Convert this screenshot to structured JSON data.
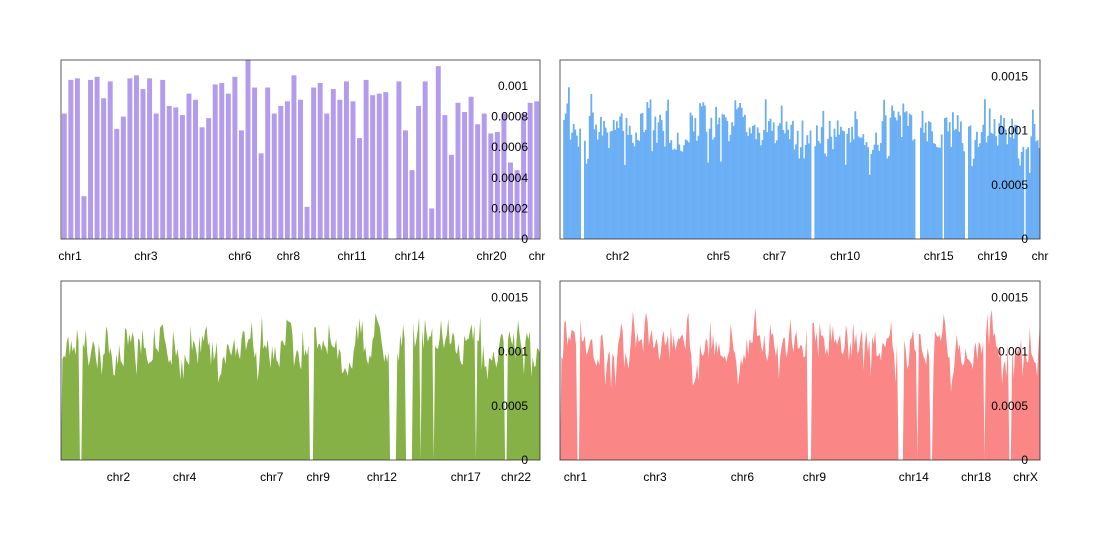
{
  "chart_data": [
    {
      "type": "bar",
      "color": "#b39ced",
      "ylim": [
        0,
        0.00117
      ],
      "yticks": [
        {
          "value": 0,
          "label": "0"
        },
        {
          "value": 0.0002,
          "label": "0.0002"
        },
        {
          "value": 0.0004,
          "label": "0.0004"
        },
        {
          "value": 0.0006,
          "label": "0.0006"
        },
        {
          "value": 0.0008,
          "label": "0.0008"
        },
        {
          "value": 0.001,
          "label": "0.001"
        }
      ],
      "xlim": [
        0,
        79
      ],
      "xticks": [
        {
          "value": 1.5,
          "label": "chr1"
        },
        {
          "value": 14,
          "label": "chr3"
        },
        {
          "value": 29.5,
          "label": "chr6"
        },
        {
          "value": 37.5,
          "label": "chr8"
        },
        {
          "value": 48,
          "label": "chr11"
        },
        {
          "value": 57.5,
          "label": "chr14"
        },
        {
          "value": 71,
          "label": "chr20"
        },
        {
          "value": 78.5,
          "label": "chr"
        }
      ],
      "values": [
        0.00082,
        0.00104,
        0.00105,
        0.00028,
        0.00104,
        0.00106,
        0.00092,
        0.00103,
        0.00072,
        0.0008,
        0.00105,
        0.00107,
        0.00098,
        0.00105,
        0.00082,
        0.00104,
        0.00087,
        0.00086,
        0.00081,
        0.00095,
        0.00091,
        0.00073,
        0.00079,
        0.00101,
        0.00102,
        0.00095,
        0.00106,
        0.00071,
        0.00117,
        0.00099,
        0.00056,
        0.00099,
        0.00082,
        0.00087,
        0.0009,
        0.00107,
        0.00091,
        0.00021,
        0.00099,
        0.00102,
        0.00082,
        0.00098,
        0.00091,
        0.00103,
        0.0009,
        0.00066,
        0.00104,
        0.00094,
        0.00095,
        0.00096,
        0,
        0.00103,
        0.00071,
        0.00045,
        0.00087,
        0.00103,
        0.0002,
        0.00113,
        0.00081,
        0.00055,
        0.00089,
        0.00083,
        0.00093,
        0.00075,
        0.00082,
        0.00069,
        0.0007,
        0.00082,
        0.0005,
        0.00045,
        0.00082,
        0.00089,
        0.0009
      ]
    },
    {
      "type": "bar",
      "color": "#6aaef5",
      "ylim": [
        0,
        0.00165
      ],
      "yticks": [
        {
          "value": 0,
          "label": "0"
        },
        {
          "value": 0.0005,
          "label": "0.0005"
        },
        {
          "value": 0.001,
          "label": "0.001"
        },
        {
          "value": 0.0015,
          "label": "0.0015"
        }
      ],
      "xlim": [
        0,
        1
      ],
      "xticks": [
        {
          "value": 0.12,
          "label": "chr2"
        },
        {
          "value": 0.33,
          "label": "chr5"
        },
        {
          "value": 0.447,
          "label": "chr7"
        },
        {
          "value": 0.594,
          "label": "chr10"
        },
        {
          "value": 0.789,
          "label": "chr15"
        },
        {
          "value": 0.901,
          "label": "chr19"
        },
        {
          "value": 1.0,
          "label": "chr"
        }
      ],
      "dense": {
        "n": 300,
        "mean": 0.00098,
        "amp": 0.00026,
        "seed": 7
      },
      "gaps": [
        [
          0.0,
          0.004
        ],
        [
          0.043,
          0.049
        ],
        [
          0.523,
          0.531
        ],
        [
          0.741,
          0.752
        ],
        [
          0.796,
          0.8
        ],
        [
          0.845,
          0.85
        ],
        [
          0.968,
          0.972
        ]
      ]
    },
    {
      "type": "area",
      "color": "#86b147",
      "ylim": [
        0,
        0.00165
      ],
      "yticks": [
        {
          "value": 0,
          "label": "0"
        },
        {
          "value": 0.0005,
          "label": "0.0005"
        },
        {
          "value": 0.001,
          "label": "0.001"
        },
        {
          "value": 0.0015,
          "label": "0.0015"
        }
      ],
      "xlim": [
        0,
        1
      ],
      "xticks": [
        {
          "value": 0.12,
          "label": "chr2"
        },
        {
          "value": 0.258,
          "label": "chr4"
        },
        {
          "value": 0.44,
          "label": "chr7"
        },
        {
          "value": 0.537,
          "label": "chr9"
        },
        {
          "value": 0.67,
          "label": "chr12"
        },
        {
          "value": 0.845,
          "label": "chr17"
        },
        {
          "value": 0.95,
          "label": "chr22"
        }
      ],
      "dense": {
        "n": 330,
        "mean": 0.00102,
        "amp": 0.00026,
        "seed": 21
      },
      "gaps": [
        [
          0.0,
          0.003
        ],
        [
          0.038,
          0.044
        ],
        [
          0.518,
          0.528
        ],
        [
          0.685,
          0.7
        ],
        [
          0.72,
          0.733
        ],
        [
          0.748,
          0.752
        ],
        [
          0.777,
          0.781
        ],
        [
          0.864,
          0.868
        ],
        [
          0.926,
          0.931
        ]
      ]
    },
    {
      "type": "area",
      "color": "#fb8686",
      "ylim": [
        0,
        0.00165
      ],
      "yticks": [
        {
          "value": 0,
          "label": "0"
        },
        {
          "value": 0.0005,
          "label": "0.0005"
        },
        {
          "value": 0.001,
          "label": "0.001"
        },
        {
          "value": 0.0015,
          "label": "0.0015"
        }
      ],
      "xlim": [
        0,
        1
      ],
      "xticks": [
        {
          "value": 0.032,
          "label": "chr1"
        },
        {
          "value": 0.198,
          "label": "chr3"
        },
        {
          "value": 0.38,
          "label": "chr6"
        },
        {
          "value": 0.53,
          "label": "chr9"
        },
        {
          "value": 0.737,
          "label": "chr14"
        },
        {
          "value": 0.867,
          "label": "chr18"
        },
        {
          "value": 0.97,
          "label": "chrX"
        }
      ],
      "dense": {
        "n": 330,
        "mean": 0.00104,
        "amp": 0.00026,
        "seed": 43
      },
      "gaps": [
        [
          0.0,
          0.003
        ],
        [
          0.034,
          0.04
        ],
        [
          0.514,
          0.523
        ],
        [
          0.704,
          0.716
        ],
        [
          0.742,
          0.746
        ],
        [
          0.772,
          0.776
        ],
        [
          0.883,
          0.887
        ],
        [
          0.936,
          0.94
        ]
      ]
    }
  ]
}
